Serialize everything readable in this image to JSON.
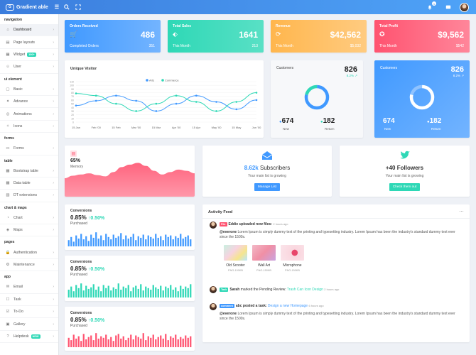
{
  "topbar": {
    "logo_text": "Gradient able",
    "logo_badge": "G",
    "notif_count": "1"
  },
  "sidebar": {
    "sections": [
      {
        "title": "navigation",
        "items": [
          {
            "label": "Dashboard",
            "icon": "home-icon",
            "glyph": "⌂",
            "active": true
          },
          {
            "label": "Page layouts",
            "icon": "layout-icon",
            "glyph": "▤"
          },
          {
            "label": "Widget",
            "icon": "widget-icon",
            "glyph": "▦",
            "badge": "100+"
          },
          {
            "label": "User",
            "icon": "user-icon",
            "glyph": "☺"
          }
        ]
      },
      {
        "title": "ui element",
        "items": [
          {
            "label": "Basic",
            "icon": "box-icon",
            "glyph": "▢"
          },
          {
            "label": "Advance",
            "icon": "gift-icon",
            "glyph": "✦"
          },
          {
            "label": "Animations",
            "icon": "animation-icon",
            "glyph": "◎"
          },
          {
            "label": "Icons",
            "icon": "feather-icon",
            "glyph": "✧"
          }
        ]
      },
      {
        "title": "forms",
        "items": [
          {
            "label": "Forms",
            "icon": "form-icon",
            "glyph": "▭"
          }
        ]
      },
      {
        "title": "table",
        "items": [
          {
            "label": "Bootstrap table",
            "icon": "table-icon",
            "glyph": "▦"
          },
          {
            "label": "Data table",
            "icon": "grid-icon",
            "glyph": "▦"
          },
          {
            "label": "DT extensions",
            "icon": "extension-icon",
            "glyph": "▧"
          }
        ]
      },
      {
        "title": "chart & maps",
        "items": [
          {
            "label": "Chart",
            "icon": "pie-chart-icon",
            "glyph": "◔"
          },
          {
            "label": "Maps",
            "icon": "map-icon",
            "glyph": "◈"
          }
        ]
      },
      {
        "title": "pages",
        "items": [
          {
            "label": "Authentication",
            "icon": "lock-icon",
            "glyph": "🔒"
          },
          {
            "label": "Maintenance",
            "icon": "tool-icon",
            "glyph": "⚙"
          }
        ]
      },
      {
        "title": "app",
        "items": [
          {
            "label": "Email",
            "icon": "mail-icon",
            "glyph": "✉"
          },
          {
            "label": "Task",
            "icon": "clipboard-icon",
            "glyph": "☐"
          },
          {
            "label": "To-Do",
            "icon": "check-square-icon",
            "glyph": "☑"
          },
          {
            "label": "Gallery",
            "icon": "image-icon",
            "glyph": "▣"
          },
          {
            "label": "Helpdesk",
            "icon": "help-icon",
            "glyph": "?",
            "badge": "NEW"
          }
        ]
      }
    ]
  },
  "stats": [
    {
      "title": "Orders Received",
      "icon": "cart-icon",
      "glyph": "🛒",
      "value": "486",
      "footer": "Completed Orders",
      "footer_value": "351",
      "color1": "#4099ff",
      "color2": "#73b4ff"
    },
    {
      "title": "Total Sales",
      "icon": "tag-icon",
      "glyph": "⬖",
      "value": "1641",
      "footer": "This Month",
      "footer_value": "213",
      "color1": "#2ed8b6",
      "color2": "#59e0c5"
    },
    {
      "title": "Revenue",
      "icon": "repeat-icon",
      "glyph": "⟳",
      "value": "$42,562",
      "footer": "This Month",
      "footer_value": "$5,032",
      "color1": "#ffb64d",
      "color2": "#ffcb80"
    },
    {
      "title": "Total Profit",
      "icon": "award-icon",
      "glyph": "✪",
      "value": "$9,562",
      "footer": "This Month",
      "footer_value": "$542",
      "color1": "#ff5370",
      "color2": "#ff869a"
    }
  ],
  "unique_visitor": {
    "title": "Unique Visitor",
    "chart_data": {
      "type": "line",
      "x": [
        "15 Jan",
        "Feb '00",
        "15 Feb",
        "Mar '00",
        "15 Mar",
        "Apr '00",
        "15 Apr",
        "May '00",
        "15 May",
        "Jun '00"
      ],
      "yticks": [
        0,
        10,
        20,
        30,
        40,
        50,
        60,
        70,
        80,
        90,
        100,
        110
      ],
      "ylim": [
        0,
        110
      ],
      "series": [
        {
          "name": "Arts",
          "color": "#4099ff",
          "values": [
            45,
            58,
            72,
            58,
            30,
            50,
            72,
            55,
            35,
            60
          ]
        },
        {
          "name": "Commerce",
          "color": "#2ed8b6",
          "values": [
            78,
            72,
            50,
            30,
            50,
            72,
            55,
            30,
            55,
            80
          ]
        }
      ]
    }
  },
  "customers1": {
    "title": "Customers",
    "value": "826",
    "trend": "8.2%",
    "new_value": "674",
    "new_label": "New",
    "return_value": "182",
    "return_label": "Return",
    "chart_data": {
      "type": "pie",
      "labels": [
        "New",
        "Return"
      ],
      "values": [
        674,
        182
      ],
      "colors": [
        "#4099ff",
        "#2ed8b6"
      ]
    }
  },
  "customers2": {
    "title": "Customers",
    "value": "826",
    "trend": "8.2%",
    "new_value": "674",
    "new_label": "New",
    "return_value": "182",
    "return_label": "Return",
    "chart_data": {
      "type": "pie",
      "labels": [
        "New",
        "Return"
      ],
      "values": [
        674,
        182
      ]
    }
  },
  "memory": {
    "percent": "65%",
    "label": "Memory",
    "chart_data": {
      "type": "area",
      "values": [
        30,
        34,
        36,
        38,
        35,
        33,
        40,
        48,
        52,
        55,
        50,
        42,
        36,
        40,
        44,
        42,
        38
      ],
      "color": "#ff5370"
    }
  },
  "subscribers": {
    "value": "8.62k",
    "label": "Subscribers",
    "sub": "Your main list is growing",
    "button": "Manage List"
  },
  "followers": {
    "value": "+40",
    "label": "Followers",
    "sub": "Your main list is growing",
    "button": "Check them out"
  },
  "conversions": [
    {
      "title": "Conversions",
      "value": "0.85%",
      "change": "0.50%",
      "sub": "Purchased",
      "color": "#4099ff",
      "chart_data": {
        "type": "bar",
        "values": [
          8,
          12,
          6,
          14,
          10,
          16,
          9,
          13,
          7,
          15,
          11,
          18,
          10,
          14,
          8,
          16,
          12,
          9,
          15,
          11,
          13,
          17,
          9,
          14,
          10,
          12,
          16,
          8,
          13,
          11,
          15,
          9,
          14,
          12,
          10,
          16,
          11,
          13,
          8,
          15,
          12,
          14,
          9,
          13,
          11,
          16,
          10,
          12,
          14,
          9
        ]
      }
    },
    {
      "title": "Conversions",
      "value": "0.85%",
      "change": "0.50%",
      "sub": "Purchased",
      "color": "#2ed8b6",
      "chart_data": {
        "type": "bar",
        "values": [
          10,
          14,
          8,
          16,
          12,
          18,
          9,
          15,
          11,
          13,
          17,
          10,
          14,
          8,
          16,
          12,
          15,
          9,
          13,
          11,
          18,
          10,
          14,
          12,
          16,
          8,
          13,
          15,
          11,
          17,
          9,
          14,
          12,
          10,
          16,
          13,
          11,
          15,
          9,
          14,
          12,
          16,
          10,
          13,
          8,
          15,
          11,
          14,
          12,
          17
        ]
      }
    },
    {
      "title": "Conversions",
      "value": "0.85%",
      "change": "0.50%",
      "sub": "Purchased",
      "color": "#ff5370",
      "chart_data": {
        "type": "bar",
        "values": [
          12,
          9,
          16,
          11,
          14,
          8,
          17,
          10,
          13,
          15,
          9,
          18,
          11,
          14,
          12,
          16,
          10,
          13,
          8,
          15,
          17,
          11,
          14,
          9,
          12,
          16,
          10,
          15,
          13,
          11,
          18,
          9,
          14,
          12,
          16,
          10,
          13,
          15,
          11,
          17,
          9,
          14,
          12,
          16,
          10,
          13,
          11,
          15,
          12,
          14
        ]
      }
    }
  ],
  "activity": {
    "title": "Activity Feed",
    "menu": "…",
    "items": [
      {
        "tag": "File",
        "tag_color": "#ff5370",
        "user": "Eddie",
        "action": "uploaded new files:",
        "time": "2 hours ago",
        "mention": "@everone",
        "body": " Lorem Ipsum is simply dummy text of the printing and typesetting industry. Lorem Ipsum has been the industry's standard dummy text ever since the 1500s.",
        "files": [
          {
            "name": "Old Scooter",
            "meta": "PNG-100KB"
          },
          {
            "name": "Wall Art",
            "meta": "PNG-150KB"
          },
          {
            "name": "Microphone",
            "meta": "PNG-150KB"
          }
        ]
      },
      {
        "tag": "Task",
        "tag_color": "#2ed8b6",
        "user": "Sarah",
        "action": "marked the Pending Review:",
        "link": "Trash Can Icon Design",
        "time": "2 hours ago"
      },
      {
        "tag": "comment",
        "tag_color": "#4099ff",
        "user": "abc",
        "action": "posted a task:",
        "link": "Design a new Homepage",
        "time": "6 hours ago",
        "mention": "@everone",
        "body": " Lorem Ipsum is simply dummy text of the printing and typesetting industry. Lorem Ipsum has been the industry's standard dummy text ever since the 1500s."
      }
    ]
  }
}
